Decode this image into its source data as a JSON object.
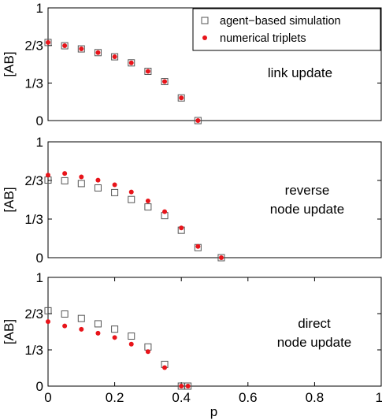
{
  "chart_data": [
    {
      "type": "scatter",
      "ylabel": "[AB]",
      "annotation": [
        "link update"
      ],
      "xlim": [
        0,
        1
      ],
      "ylim": [
        0,
        1
      ],
      "yticks": [
        "0",
        "1/3",
        "2/3",
        "1"
      ],
      "legend": {
        "placement": "top-right",
        "entries": [
          "agent−based simulation",
          "numerical triplets"
        ]
      },
      "series": [
        {
          "name": "agent−based simulation",
          "marker": "open-square",
          "color": "#555555",
          "x": [
            0,
            0.05,
            0.1,
            0.15,
            0.2,
            0.25,
            0.3,
            0.35,
            0.4,
            0.45
          ],
          "y": [
            0.693,
            0.664,
            0.636,
            0.603,
            0.566,
            0.512,
            0.437,
            0.346,
            0.201,
            0.0
          ]
        },
        {
          "name": "numerical triplets",
          "marker": "dot",
          "color": "#e8141a",
          "x": [
            0,
            0.05,
            0.1,
            0.15,
            0.2,
            0.25,
            0.3,
            0.35,
            0.4,
            0.45
          ],
          "y": [
            0.693,
            0.664,
            0.636,
            0.603,
            0.566,
            0.512,
            0.437,
            0.346,
            0.201,
            0.0
          ]
        }
      ]
    },
    {
      "type": "scatter",
      "ylabel": "[AB]",
      "annotation": [
        "reverse",
        "node update"
      ],
      "xlim": [
        0,
        1
      ],
      "ylim": [
        0,
        1
      ],
      "yticks": [
        "0",
        "1/3",
        "2/3",
        "1"
      ],
      "series": [
        {
          "name": "agent−based simulation",
          "marker": "open-square",
          "color": "#555555",
          "x": [
            0,
            0.05,
            0.1,
            0.15,
            0.2,
            0.25,
            0.3,
            0.35,
            0.4,
            0.45,
            0.52
          ],
          "y": [
            0.67,
            0.664,
            0.64,
            0.602,
            0.562,
            0.502,
            0.438,
            0.363,
            0.237,
            0.087,
            0.0
          ]
        },
        {
          "name": "numerical triplets",
          "marker": "dot",
          "color": "#e8141a",
          "x": [
            0,
            0.05,
            0.1,
            0.15,
            0.2,
            0.25,
            0.3,
            0.35,
            0.4,
            0.45,
            0.52
          ],
          "y": [
            0.713,
            0.727,
            0.697,
            0.669,
            0.629,
            0.567,
            0.49,
            0.397,
            0.257,
            0.097,
            0.0
          ]
        }
      ]
    },
    {
      "type": "scatter",
      "ylabel": "[AB]",
      "annotation": [
        "direct",
        "node update"
      ],
      "xlim": [
        0,
        1
      ],
      "ylim": [
        0,
        1
      ],
      "xlabel": "p",
      "xticks": [
        "0",
        "0.2",
        "0.4",
        "0.6",
        "0.8",
        "1"
      ],
      "yticks": [
        "0",
        "1/3",
        "2/3",
        "1"
      ],
      "series": [
        {
          "name": "agent−based simulation",
          "marker": "open-square",
          "color": "#555555",
          "x": [
            0,
            0.05,
            0.1,
            0.15,
            0.2,
            0.25,
            0.3,
            0.35,
            0.4,
            0.42
          ],
          "y": [
            0.693,
            0.663,
            0.622,
            0.573,
            0.524,
            0.46,
            0.36,
            0.2,
            0.0,
            0.0
          ]
        },
        {
          "name": "numerical triplets",
          "marker": "dot",
          "color": "#e8141a",
          "x": [
            0,
            0.05,
            0.1,
            0.15,
            0.2,
            0.25,
            0.3,
            0.35,
            0.4,
            0.42
          ],
          "y": [
            0.593,
            0.553,
            0.523,
            0.486,
            0.447,
            0.386,
            0.317,
            0.17,
            0.0,
            0.0
          ]
        }
      ]
    }
  ]
}
